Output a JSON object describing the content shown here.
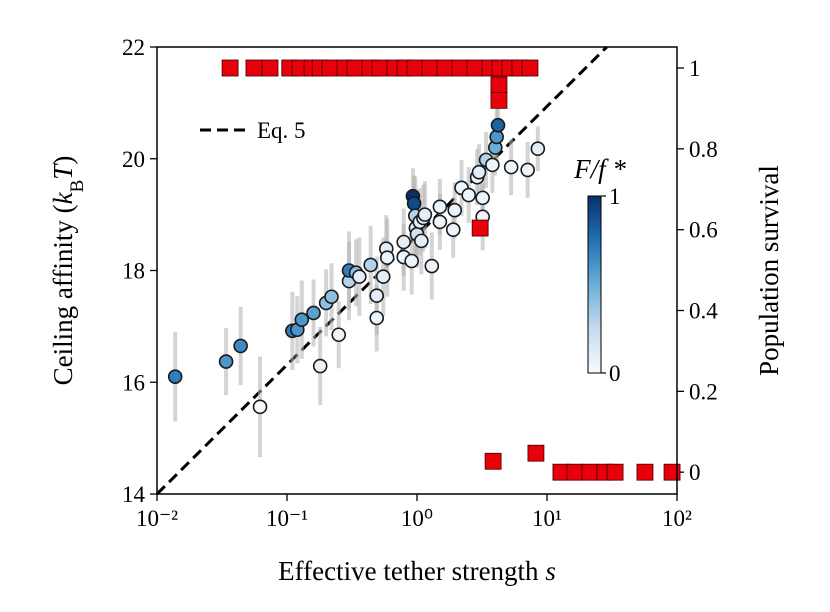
{
  "chart_data": {
    "type": "scatter",
    "xscale": "log",
    "xlim": [
      0.01,
      100
    ],
    "ylim": [
      14,
      22
    ],
    "y2lim": [
      -0.054,
      1.052
    ],
    "xticks": [
      {
        "value": 0.01,
        "label": "10⁻²"
      },
      {
        "value": 0.1,
        "label": "10⁻¹"
      },
      {
        "value": 1,
        "label": "10⁰"
      },
      {
        "value": 10,
        "label": "10¹"
      },
      {
        "value": 100,
        "label": "10²"
      }
    ],
    "yticks": [
      14,
      16,
      18,
      20,
      22
    ],
    "y2ticks": [
      0,
      0.2,
      0.4,
      0.6,
      0.8,
      1
    ],
    "xlabel": [
      "Effective tether strength ",
      "s"
    ],
    "ylabel": [
      "Ceiling affinity (",
      "k",
      "B",
      "T",
      ")"
    ],
    "y2label": "Population survival",
    "y2label_color": "#e8000b",
    "legend": "upper left",
    "colorbar": {
      "label": "F/f *",
      "ticks": [
        0,
        1
      ],
      "colormap": [
        "#f7fbff",
        "#c6dbef",
        "#6baed6",
        "#2171b5",
        "#08306b"
      ]
    },
    "series": [
      {
        "name": "Eq. 5",
        "type": "line",
        "dash": true,
        "color": "#000000",
        "x": [
          0.01,
          28.8
        ],
        "values": [
          14,
          22
        ]
      },
      {
        "type": "scatter",
        "marker": "circle",
        "error_color": "#b0b0b0",
        "x": [
          0.0138,
          0.034,
          0.044,
          0.062,
          0.11,
          0.12,
          0.13,
          0.16,
          0.18,
          0.2,
          0.22,
          0.25,
          0.3,
          0.3,
          0.34,
          0.36,
          0.44,
          0.49,
          0.49,
          0.55,
          0.58,
          0.59,
          0.79,
          0.79,
          0.91,
          0.93,
          0.95,
          0.97,
          0.98,
          1.0,
          1.05,
          1.12,
          1.15,
          1.08,
          1.3,
          1.5,
          1.5,
          1.9,
          1.95,
          2.2,
          2.5,
          2.9,
          3.0,
          3.2,
          3.2,
          3.4,
          3.8,
          4.0,
          4.1,
          4.2,
          5.3,
          7.1,
          8.5
        ],
        "values": [
          16.1,
          16.37,
          16.65,
          15.56,
          16.92,
          16.94,
          17.12,
          17.24,
          16.29,
          17.42,
          17.53,
          16.85,
          17.81,
          18.0,
          17.96,
          17.89,
          18.1,
          17.55,
          17.15,
          17.89,
          18.39,
          18.23,
          18.51,
          18.24,
          18.17,
          19.33,
          19.2,
          18.98,
          18.76,
          18.65,
          18.87,
          18.94,
          19.0,
          18.53,
          18.08,
          19.14,
          18.87,
          18.73,
          19.08,
          19.48,
          19.35,
          19.67,
          19.76,
          19.3,
          18.96,
          19.98,
          19.89,
          20.2,
          20.39,
          20.6,
          19.85,
          19.8,
          20.18
        ],
        "errors": [
          0.8,
          0.6,
          0.7,
          0.9,
          0.7,
          0.6,
          0.7,
          0.6,
          0.7,
          0.6,
          0.6,
          0.6,
          0.7,
          0.7,
          0.6,
          0.7,
          0.7,
          0.7,
          0.6,
          0.7,
          0.6,
          0.7,
          0.6,
          0.6,
          0.6,
          0.5,
          0.5,
          0.7,
          0.6,
          0.6,
          0.6,
          0.6,
          0.6,
          0.6,
          0.6,
          0.5,
          0.5,
          0.5,
          0.5,
          0.5,
          0.5,
          0.5,
          0.5,
          0.5,
          0.6,
          0.5,
          0.5,
          0.5,
          0.5,
          0.4,
          0.5,
          0.5,
          0.4
        ],
        "color_values": [
          0.7,
          0.6,
          0.65,
          0.0,
          0.7,
          0.6,
          0.6,
          0.55,
          0.05,
          0.4,
          0.4,
          0.05,
          0.3,
          0.7,
          0.4,
          0.1,
          0.3,
          0.1,
          0.05,
          0.1,
          0.1,
          0.05,
          0.1,
          0.05,
          0.05,
          1.0,
          0.9,
          0.3,
          0.1,
          0.2,
          0.1,
          0.05,
          0.1,
          0.1,
          0.05,
          0.05,
          0.05,
          0.05,
          0.05,
          0.05,
          0.05,
          0.05,
          0.1,
          0.05,
          0.05,
          0.3,
          0.05,
          0.5,
          0.6,
          0.8,
          0.05,
          0.05,
          0.1
        ]
      },
      {
        "type": "scatter",
        "marker": "square",
        "axis": "y2",
        "color": "#e8000b",
        "x": [
          0.0365,
          0.0557,
          0.074,
          0.105,
          0.126,
          0.156,
          0.18,
          0.214,
          0.279,
          0.333,
          0.435,
          0.519,
          0.677,
          0.809,
          0.966,
          1.26,
          1.64,
          2.14,
          2.79,
          3.65,
          4.35,
          5.19,
          6.19,
          7.39,
          4.27,
          4.27,
          3.06,
          3.85,
          8.22,
          12.8,
          16.4,
          21.4,
          27.9,
          33.4,
          56.7,
          91.6
        ],
        "values": [
          1,
          1,
          1,
          1,
          1,
          1,
          1,
          1,
          1,
          1,
          1,
          1,
          1,
          1,
          1,
          1,
          1,
          1,
          1,
          1,
          1,
          1,
          1,
          1,
          0.958,
          0.92,
          0.604,
          0.027,
          0.047,
          0,
          0,
          0,
          0,
          0,
          0,
          0
        ]
      }
    ]
  }
}
